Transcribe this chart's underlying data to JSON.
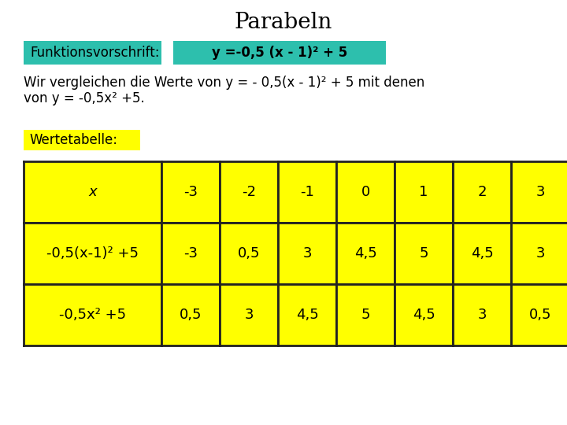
{
  "title": "Parabeln",
  "bg_color": "#ffffff",
  "teal_color": "#2dbfad",
  "yellow_color": "#ffff00",
  "label1": "Funktionsvorschrift:",
  "label2": "y =-0,5 (x - 1)² + 5",
  "body_text_line1": "Wir vergleichen die Werte von y = - 0,5(x - 1)² + 5 mit denen",
  "body_text_line2": "von y = -0,5x² +5.",
  "section_label": "Wertetabelle:",
  "table_header": [
    "x",
    "-3",
    "-2",
    "-1",
    "0",
    "1",
    "2",
    "3"
  ],
  "table_row1_label": "-0,5(x-1)² +5",
  "table_row1_vals": [
    "-3",
    "0,5",
    "3",
    "4,5",
    "5",
    "4,5",
    "3"
  ],
  "table_row2_label": "-0,5x² +5",
  "table_row2_vals": [
    "0,5",
    "3",
    "4,5",
    "5",
    "4,5",
    "3",
    "0,5"
  ],
  "title_fontsize": 20,
  "body_fontsize": 12,
  "table_fontsize": 13,
  "label_fontsize": 12
}
